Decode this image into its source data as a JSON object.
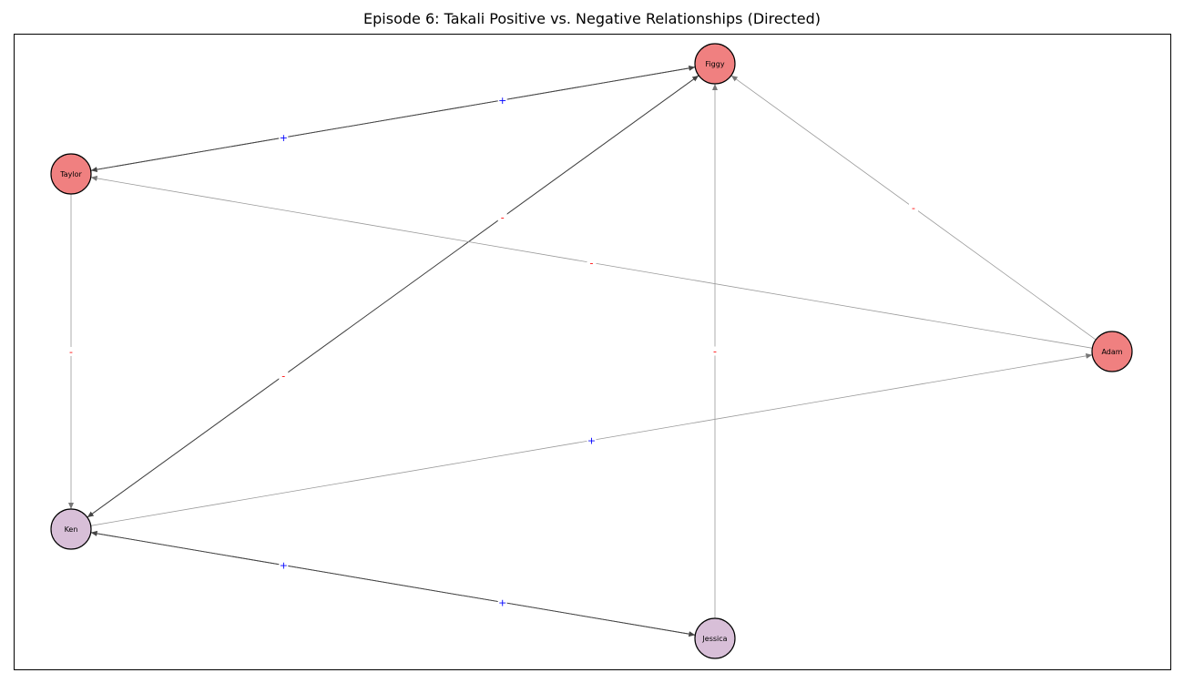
{
  "title": "Episode 6: Takali Positive vs. Negative Relationships (Directed)",
  "colors": {
    "node_fill_red": "#f08080",
    "node_fill_purple": "#d8bfd8",
    "positive_sign": "#0000ff",
    "negative_sign": "#ff0000",
    "edge_dark": "#444444",
    "edge_light": "#999999"
  },
  "nodes": [
    {
      "id": "Figgy",
      "label": "Figgy",
      "color": "#f08080"
    },
    {
      "id": "Taylor",
      "label": "Taylor",
      "color": "#f08080"
    },
    {
      "id": "Adam",
      "label": "Adam",
      "color": "#f08080"
    },
    {
      "id": "Ken",
      "label": "Ken",
      "color": "#d8bfd8"
    },
    {
      "id": "Jessica",
      "label": "Jessica",
      "color": "#d8bfd8"
    }
  ],
  "edges": [
    {
      "source": "Taylor",
      "target": "Figgy",
      "sign": "+"
    },
    {
      "source": "Figgy",
      "target": "Taylor",
      "sign": "+"
    },
    {
      "source": "Ken",
      "target": "Figgy",
      "sign": "-"
    },
    {
      "source": "Figgy",
      "target": "Ken",
      "sign": "-"
    },
    {
      "source": "Jessica",
      "target": "Figgy",
      "sign": "-"
    },
    {
      "source": "Adam",
      "target": "Figgy",
      "sign": "-"
    },
    {
      "source": "Adam",
      "target": "Taylor",
      "sign": "-"
    },
    {
      "source": "Taylor",
      "target": "Ken",
      "sign": "-"
    },
    {
      "source": "Ken",
      "target": "Adam",
      "sign": "+"
    },
    {
      "source": "Ken",
      "target": "Jessica",
      "sign": "+"
    },
    {
      "source": "Jessica",
      "target": "Ken",
      "sign": "+"
    }
  ]
}
